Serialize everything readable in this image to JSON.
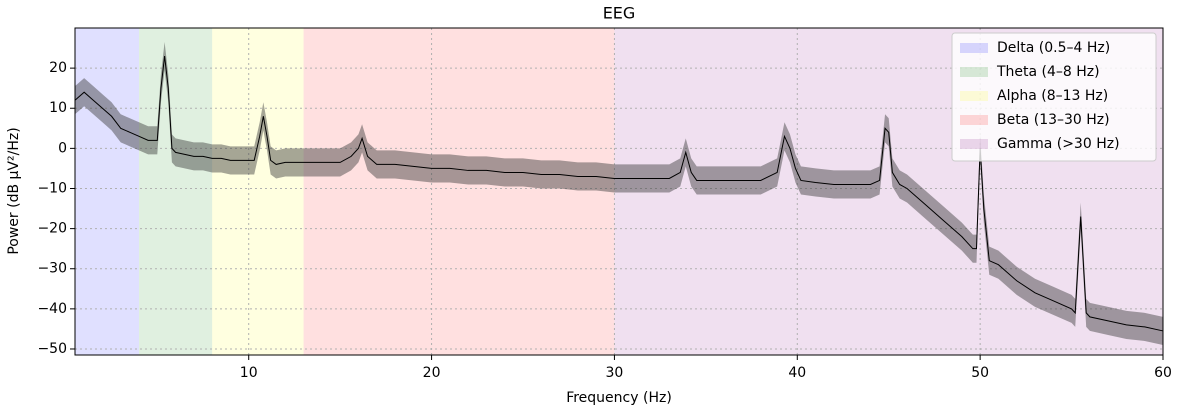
{
  "chart_data": {
    "type": "line",
    "title": "EEG",
    "x_label": "Frequency (Hz)",
    "y_label": "Power (dB µV²/Hz)",
    "xlim": [
      0.5,
      60
    ],
    "ylim": [
      -51.5,
      30
    ],
    "xticks": [
      10,
      20,
      30,
      40,
      50,
      60
    ],
    "yticks": [
      20,
      10,
      0,
      {
        "value": -10,
        "label": "−10"
      },
      {
        "value": -20,
        "label": "−20"
      },
      {
        "value": -30,
        "label": "−30"
      },
      {
        "value": -40,
        "label": "−40"
      },
      {
        "value": -50,
        "label": "−50"
      }
    ],
    "grid": true,
    "legend": "upper right",
    "bands": [
      {
        "name": "Delta (0.5–4 Hz)",
        "range": [
          0.5,
          4
        ],
        "color": "#0000ff"
      },
      {
        "name": "Theta (4–8 Hz)",
        "range": [
          4,
          8
        ],
        "color": "#008000"
      },
      {
        "name": "Alpha (8–13 Hz)",
        "range": [
          8,
          13
        ],
        "color": "#ffff00"
      },
      {
        "name": "Beta (13–30 Hz)",
        "range": [
          13,
          30
        ],
        "color": "#ff0000"
      },
      {
        "name": "Gamma (>30 Hz)",
        "range": [
          30,
          60
        ],
        "color": "#800080"
      }
    ],
    "x": [
      0.5,
      1,
      1.5,
      2,
      2.5,
      3,
      3.5,
      4,
      4.5,
      5,
      5.2,
      5.4,
      5.6,
      5.8,
      6,
      6.5,
      7,
      7.5,
      8,
      8.5,
      9,
      9.5,
      10,
      10.3,
      10.6,
      10.8,
      11,
      11.2,
      11.5,
      12,
      13,
      14,
      15,
      15.6,
      16,
      16.2,
      16.5,
      17,
      18,
      19,
      20,
      21,
      22,
      23,
      24,
      25,
      26,
      27,
      28,
      29,
      30,
      31,
      32,
      33,
      33.6,
      33.9,
      34.2,
      34.5,
      35,
      36,
      37,
      38,
      38.9,
      39.3,
      39.6,
      39.9,
      40.2,
      41,
      42,
      43,
      44,
      44.5,
      44.8,
      45,
      45.2,
      45.6,
      46,
      47,
      48,
      49,
      49.6,
      49.8,
      50,
      50.2,
      50.5,
      51,
      52,
      53,
      54,
      55,
      55.2,
      55.5,
      55.8,
      56,
      57,
      58,
      59,
      60
    ],
    "series": [
      {
        "color": "#000000",
        "error": 3.5,
        "values": [
          12,
          14,
          12,
          10,
          8,
          5,
          4,
          3,
          2,
          2,
          15,
          23,
          15,
          0,
          -1,
          -1.5,
          -2,
          -2,
          -2.5,
          -2.5,
          -3,
          -3,
          -3,
          -3,
          3,
          8,
          3,
          -3,
          -4,
          -3.5,
          -3.5,
          -3.5,
          -3.5,
          -2,
          0,
          2.5,
          -2,
          -4,
          -4,
          -4.5,
          -5,
          -5,
          -5.5,
          -5.5,
          -6,
          -6,
          -6.5,
          -6.5,
          -7,
          -7,
          -7.5,
          -7.5,
          -7.5,
          -7.5,
          -6,
          -1,
          -6,
          -8,
          -8,
          -8,
          -8,
          -8,
          -6,
          3,
          0,
          -5,
          -8,
          -8.5,
          -9,
          -9,
          -9,
          -8,
          5,
          4,
          -6,
          -9,
          -10,
          -14,
          -18,
          -22,
          -25,
          -25,
          0,
          -15,
          -28,
          -29,
          -33,
          -36,
          -38,
          -40,
          -41,
          -17,
          -41,
          -42,
          -43,
          -44,
          -44.5,
          -45.5
        ]
      }
    ]
  }
}
